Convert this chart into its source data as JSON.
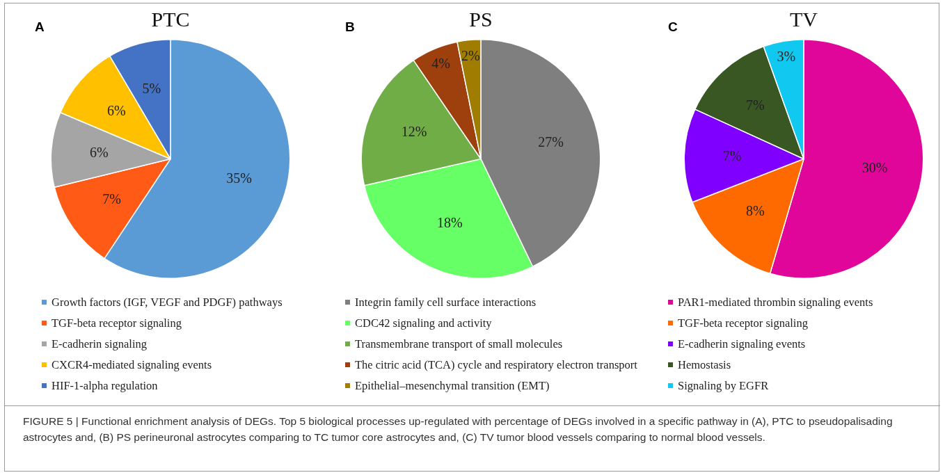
{
  "chart_data": [
    {
      "type": "pie",
      "title": "PTC",
      "annotations": [
        "A",
        "FIGURE 5 | Functional enrichment analysis of DEGs. Top 5 biological processes up-regulated with percentage of DEGs involved in a specific pathway in (A), PTC to pseudopalisading astrocytes and, (B) PS perineuronal astrocytes comparing to TC tumor core astrocytes and, (C) TV tumor blood vessels comparing to normal blood vessels."
      ],
      "categories": [
        "Growth factors (IGF, VEGF and PDGF) pathways",
        "TGF-beta receptor signaling",
        "E-cadherin signaling",
        "CXCR4-mediated signaling events",
        "HIF-1-alpha regulation"
      ],
      "values": [
        35,
        7,
        6,
        6,
        5
      ],
      "value_labels": [
        "35%",
        "7%",
        "6%",
        "6%",
        "5%"
      ],
      "colors": [
        "#5b9bd5",
        "#ff5b16",
        "#a5a5a5",
        "#ffc000",
        "#4472c4"
      ],
      "legend": "bottom"
    },
    {
      "type": "pie",
      "title": "PS",
      "annotations": [
        "B"
      ],
      "categories": [
        "Integrin family cell surface interactions",
        "CDC42 signaling and activity",
        "Transmembrane transport of small molecules",
        "The citric acid (TCA) cycle and respiratory electron transport",
        "Epithelial–mesenchymal transition (EMT)"
      ],
      "values": [
        27,
        18,
        12,
        4,
        2
      ],
      "value_labels": [
        "27%",
        "18%",
        "12%",
        "4%",
        "2%"
      ],
      "colors": [
        "#7f7f7f",
        "#66ff66",
        "#70ad47",
        "#9e3f0e",
        "#a07d00"
      ],
      "legend": "bottom"
    },
    {
      "type": "pie",
      "title": "TV",
      "annotations": [
        "C"
      ],
      "categories": [
        "PAR1-mediated thrombin signaling events",
        "TGF-beta receptor signaling",
        "E-cadherin signaling events",
        "Hemostasis",
        "Signaling by EGFR"
      ],
      "values": [
        30,
        8,
        7,
        7,
        3
      ],
      "value_labels": [
        "30%",
        "8%",
        "7%",
        "7%",
        "3%"
      ],
      "colors": [
        "#e0069a",
        "#ff6a00",
        "#8000ff",
        "#385723",
        "#10c8f0"
      ],
      "legend": "bottom"
    }
  ]
}
